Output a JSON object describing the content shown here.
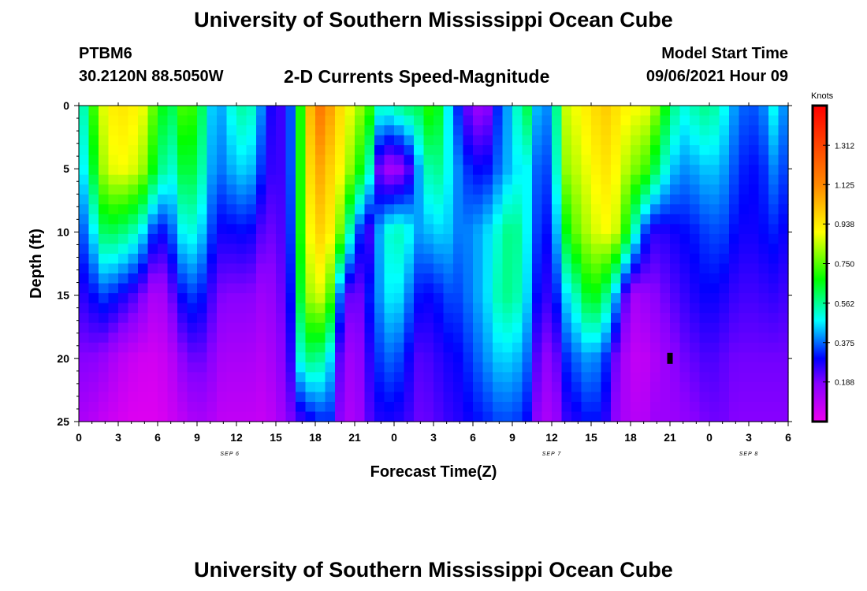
{
  "header": {
    "title": "University of Southern Mississippi Ocean Cube",
    "station": "PTBM6",
    "coords": "30.2120N  88.5050W",
    "subtitle": "2-D Currents Speed-Magnitude",
    "model_label": "Model Start Time",
    "model_date": "09/06/2021 Hour 09"
  },
  "footer": {
    "title": "University of Southern Mississippi Ocean Cube"
  },
  "chart_data": {
    "type": "heatmap",
    "xlabel": "Forecast Time(Z)",
    "ylabel": "Depth (ft)",
    "colorbar_unit": "Knots",
    "x_hours": [
      0,
      54
    ],
    "x_tick_labels": [
      "0",
      "3",
      "6",
      "9",
      "12",
      "15",
      "18",
      "21",
      "0",
      "3",
      "6",
      "9",
      "12",
      "15",
      "18",
      "21",
      "0",
      "3",
      "6"
    ],
    "day_labels": [
      {
        "label": "SEP 6",
        "hour": 11.5
      },
      {
        "label": "SEP 7",
        "hour": 36
      },
      {
        "label": "SEP 8",
        "hour": 51
      }
    ],
    "y_ticks": [
      0,
      5,
      10,
      15,
      20,
      25
    ],
    "ylim": [
      0,
      25
    ],
    "colorbar_ticks": [
      0.188,
      0.375,
      0.562,
      0.75,
      0.938,
      1.125,
      1.312
    ],
    "colorbar_tick_labels": [
      "0.188",
      "0.375",
      "0.562",
      "0.750",
      "0.938",
      "1.125",
      "1.312"
    ],
    "colorbar_range": [
      0.0,
      1.5
    ],
    "colors": {
      "scale": [
        "#ee00ee",
        "#8800ff",
        "#0000ff",
        "#00ffff",
        "#00ff00",
        "#ffff00",
        "#ff8800",
        "#ff0000"
      ]
    },
    "profile_hours": [
      0,
      1,
      2,
      3,
      4,
      5,
      6,
      7,
      8,
      9,
      10,
      11,
      12,
      13,
      14,
      15,
      16,
      17,
      18,
      19,
      20,
      21,
      22,
      23,
      24,
      25,
      26,
      27,
      28,
      29,
      30,
      31,
      32,
      33,
      34,
      35,
      36,
      37,
      38,
      39,
      40,
      41,
      42,
      43,
      44,
      45,
      46,
      47,
      48,
      49,
      50,
      51,
      52,
      53,
      54
    ],
    "profiles": [
      [
        0.45,
        0.4,
        0.32,
        0.25,
        0.18,
        0.12
      ],
      [
        0.7,
        0.62,
        0.45,
        0.3,
        0.18,
        0.1
      ],
      [
        0.9,
        0.85,
        0.62,
        0.35,
        0.15,
        0.07
      ],
      [
        0.95,
        0.9,
        0.6,
        0.3,
        0.1,
        0.05
      ],
      [
        0.93,
        0.88,
        0.55,
        0.25,
        0.07,
        0.03
      ],
      [
        0.88,
        0.8,
        0.45,
        0.18,
        0.05,
        0.03
      ],
      [
        0.7,
        0.6,
        0.28,
        0.09,
        0.05,
        0.03
      ],
      [
        0.6,
        0.5,
        0.35,
        0.2,
        0.09,
        0.06
      ],
      [
        0.75,
        0.65,
        0.5,
        0.32,
        0.18,
        0.09
      ],
      [
        0.7,
        0.62,
        0.5,
        0.35,
        0.22,
        0.13
      ],
      [
        0.45,
        0.42,
        0.35,
        0.25,
        0.18,
        0.11
      ],
      [
        0.42,
        0.38,
        0.28,
        0.18,
        0.12,
        0.08
      ],
      [
        0.55,
        0.45,
        0.3,
        0.18,
        0.12,
        0.08
      ],
      [
        0.55,
        0.45,
        0.3,
        0.18,
        0.12,
        0.08
      ],
      [
        0.38,
        0.32,
        0.22,
        0.14,
        0.1,
        0.07
      ],
      [
        0.22,
        0.22,
        0.2,
        0.17,
        0.14,
        0.1
      ],
      [
        0.3,
        0.3,
        0.28,
        0.25,
        0.22,
        0.18
      ],
      [
        0.75,
        0.75,
        0.75,
        0.7,
        0.55,
        0.25
      ],
      [
        1.2,
        1.1,
        1.0,
        0.9,
        0.6,
        0.3
      ],
      [
        1.1,
        1.0,
        0.95,
        0.8,
        0.5,
        0.35
      ],
      [
        0.95,
        0.9,
        0.75,
        0.32,
        0.18,
        0.15
      ],
      [
        0.85,
        0.75,
        0.4,
        0.15,
        0.12,
        0.1
      ],
      [
        0.75,
        0.58,
        0.22,
        0.3,
        0.25,
        0.22
      ],
      [
        0.5,
        0.15,
        0.45,
        0.42,
        0.35,
        0.28
      ],
      [
        0.55,
        0.12,
        0.55,
        0.5,
        0.38,
        0.28
      ],
      [
        0.6,
        0.2,
        0.5,
        0.4,
        0.3,
        0.25
      ],
      [
        0.62,
        0.45,
        0.4,
        0.3,
        0.22,
        0.2
      ],
      [
        0.75,
        0.6,
        0.45,
        0.3,
        0.25,
        0.22
      ],
      [
        0.5,
        0.5,
        0.45,
        0.35,
        0.28,
        0.25
      ],
      [
        0.3,
        0.38,
        0.38,
        0.35,
        0.3,
        0.27
      ],
      [
        0.15,
        0.3,
        0.4,
        0.4,
        0.35,
        0.3
      ],
      [
        0.15,
        0.3,
        0.45,
        0.45,
        0.4,
        0.32
      ],
      [
        0.35,
        0.38,
        0.52,
        0.55,
        0.45,
        0.35
      ],
      [
        0.45,
        0.45,
        0.6,
        0.58,
        0.45,
        0.35
      ],
      [
        0.65,
        0.5,
        0.5,
        0.48,
        0.4,
        0.32
      ],
      [
        0.4,
        0.35,
        0.32,
        0.28,
        0.2,
        0.15
      ],
      [
        0.4,
        0.35,
        0.3,
        0.25,
        0.15,
        0.1
      ],
      [
        0.85,
        0.8,
        0.65,
        0.45,
        0.32,
        0.25
      ],
      [
        0.9,
        0.85,
        0.78,
        0.55,
        0.38,
        0.28
      ],
      [
        0.95,
        0.9,
        0.85,
        0.7,
        0.42,
        0.32
      ],
      [
        1.0,
        0.95,
        0.9,
        0.6,
        0.35,
        0.28
      ],
      [
        0.95,
        0.9,
        0.85,
        0.4,
        0.18,
        0.15
      ],
      [
        0.9,
        0.8,
        0.6,
        0.12,
        0.08,
        0.1
      ],
      [
        0.9,
        0.75,
        0.35,
        0.15,
        0.08,
        0.1
      ],
      [
        0.8,
        0.6,
        0.25,
        0.18,
        0.12,
        0.15
      ],
      [
        0.6,
        0.45,
        0.28,
        0.22,
        0.16,
        0.14
      ],
      [
        0.5,
        0.4,
        0.3,
        0.25,
        0.2,
        0.16
      ],
      [
        0.55,
        0.42,
        0.32,
        0.28,
        0.22,
        0.18
      ],
      [
        0.58,
        0.45,
        0.35,
        0.3,
        0.24,
        0.2
      ],
      [
        0.5,
        0.42,
        0.35,
        0.28,
        0.22,
        0.2
      ],
      [
        0.4,
        0.35,
        0.3,
        0.25,
        0.2,
        0.18
      ],
      [
        0.35,
        0.3,
        0.28,
        0.24,
        0.2,
        0.18
      ],
      [
        0.38,
        0.32,
        0.3,
        0.25,
        0.2,
        0.18
      ],
      [
        0.5,
        0.4,
        0.32,
        0.26,
        0.2,
        0.18
      ],
      [
        0.35,
        0.32,
        0.28,
        0.24,
        0.2,
        0.18
      ]
    ],
    "marker": {
      "hour": 45,
      "depth": 20
    }
  }
}
